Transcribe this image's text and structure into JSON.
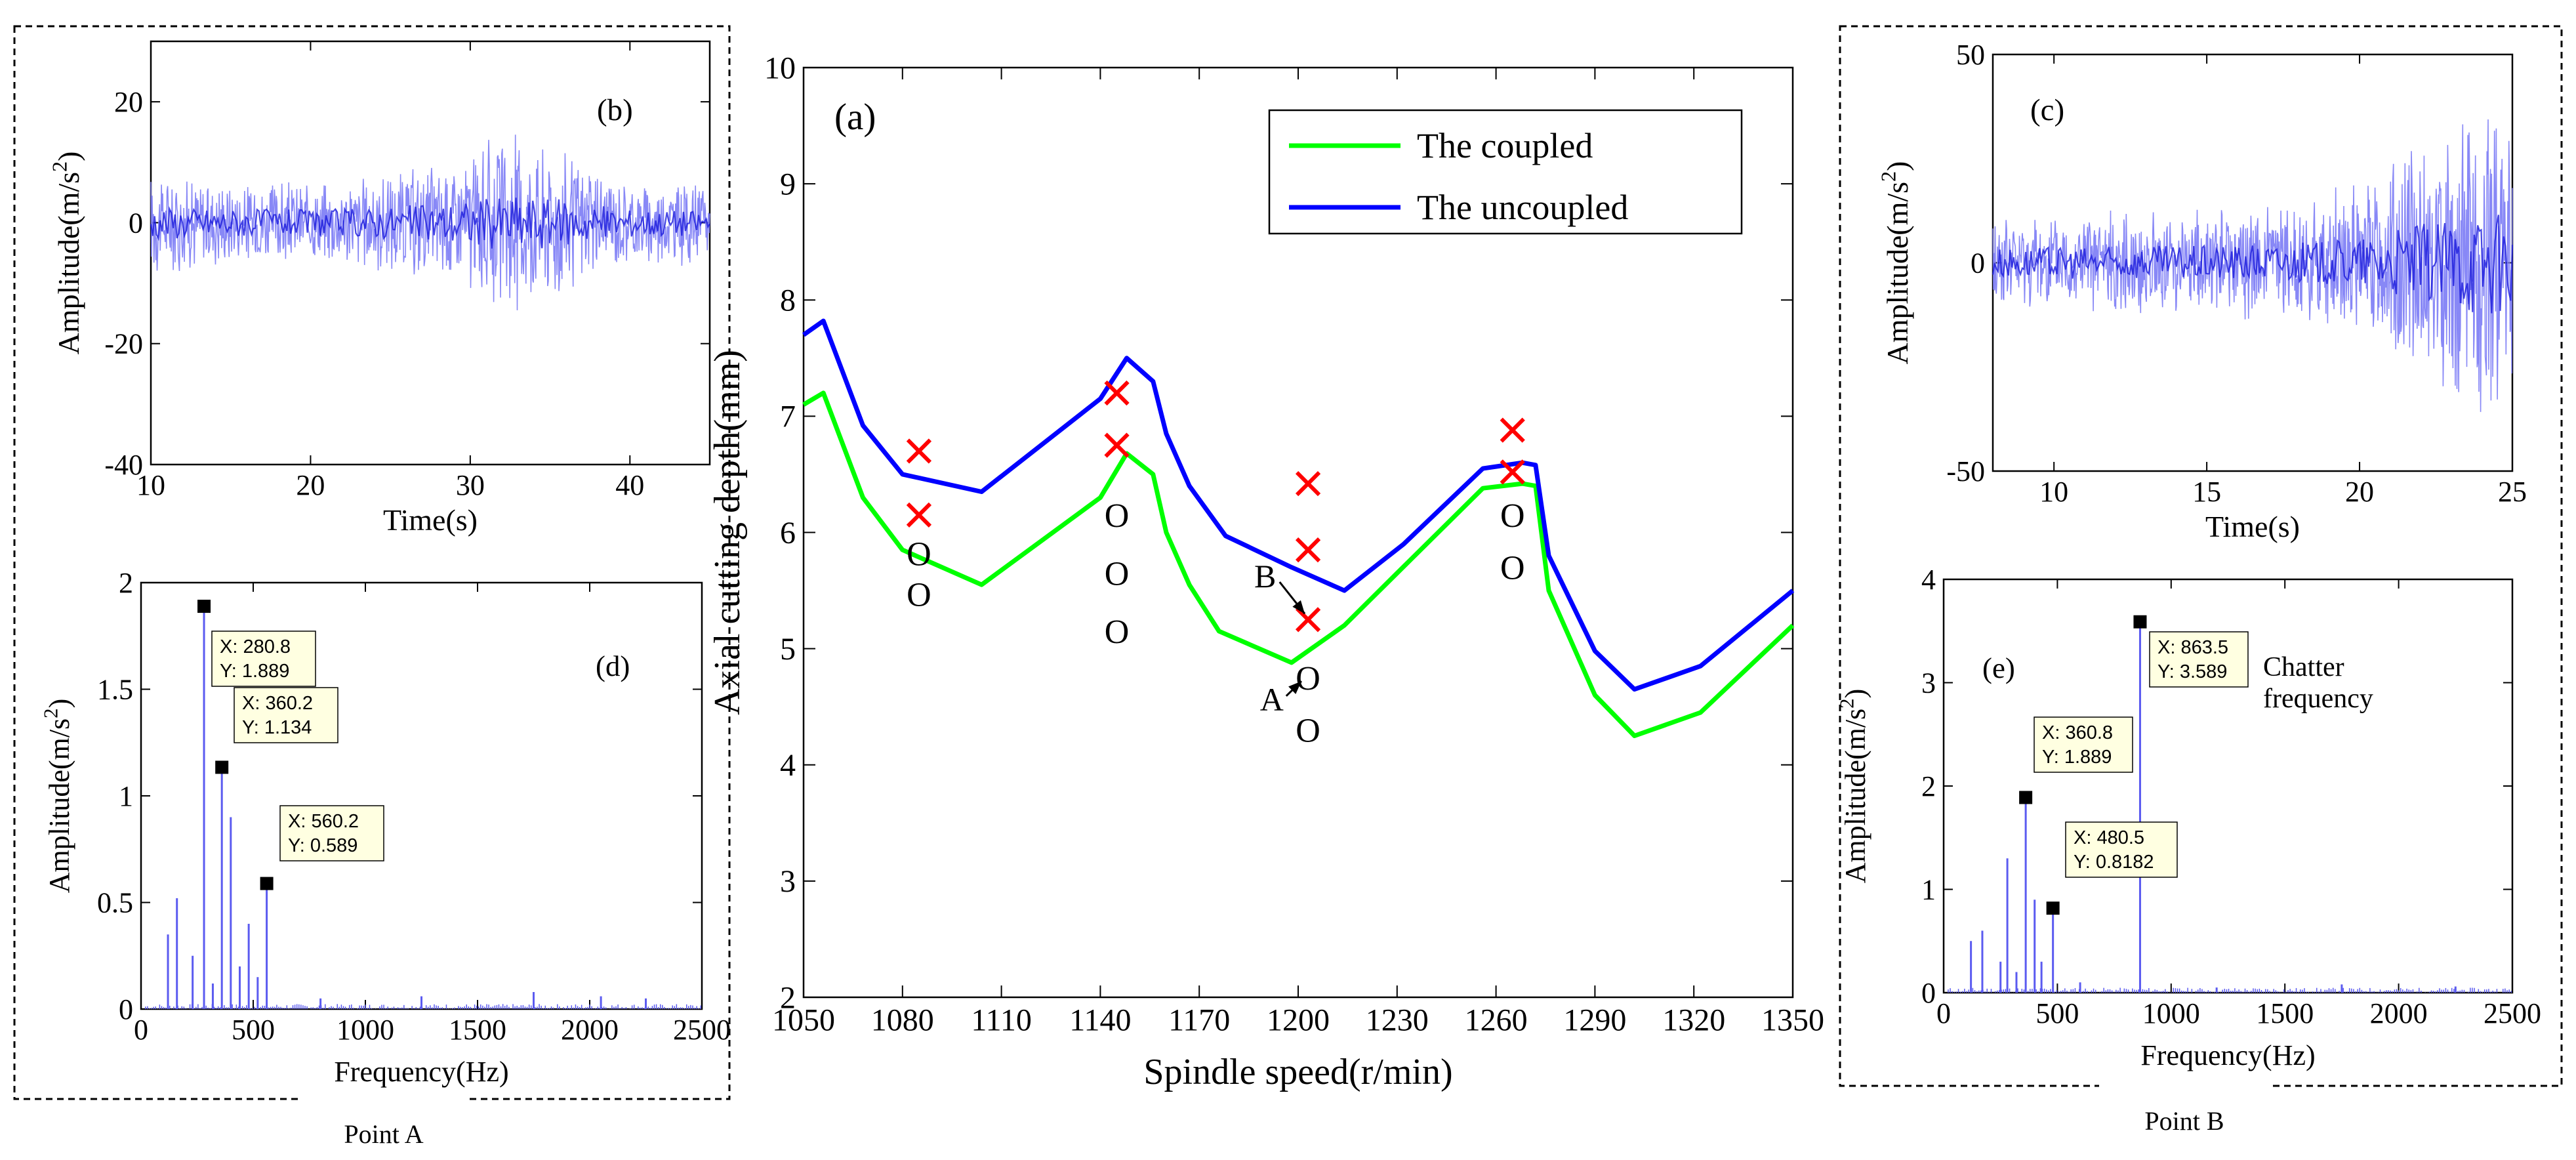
{
  "chart_data": [
    {
      "id": "a",
      "type": "line",
      "panel_label": "(a)",
      "xlabel": "Spindle speed(r/min)",
      "ylabel": "Axial cutting depth(mm)",
      "xlim": [
        1050,
        1350
      ],
      "ylim": [
        2,
        10
      ],
      "xticks": [
        "1050",
        "1080",
        "1110",
        "1140",
        "1170",
        "1200",
        "1230",
        "1260",
        "1290",
        "1320",
        "1350"
      ],
      "yticks": [
        "2",
        "3",
        "4",
        "5",
        "6",
        "7",
        "8",
        "9",
        "10"
      ],
      "legend_position": "top-right",
      "series": [
        {
          "name": "The coupled",
          "color": "#00ff00",
          "points": [
            [
              1050,
              7.1
            ],
            [
              1056,
              7.2
            ],
            [
              1068,
              6.3
            ],
            [
              1080,
              5.85
            ],
            [
              1104,
              5.55
            ],
            [
              1140,
              6.3
            ],
            [
              1148,
              6.68
            ],
            [
              1156,
              6.5
            ],
            [
              1160,
              6.0
            ],
            [
              1167,
              5.55
            ],
            [
              1176,
              5.15
            ],
            [
              1198,
              4.88
            ],
            [
              1214,
              5.2
            ],
            [
              1230,
              5.65
            ],
            [
              1256,
              6.38
            ],
            [
              1268,
              6.42
            ],
            [
              1272,
              6.4
            ],
            [
              1276,
              5.5
            ],
            [
              1290,
              4.6
            ],
            [
              1302,
              4.25
            ],
            [
              1322,
              4.45
            ],
            [
              1350,
              5.2
            ]
          ]
        },
        {
          "name": "The uncoupled",
          "color": "#0000ff",
          "points": [
            [
              1050,
              7.7
            ],
            [
              1056,
              7.82
            ],
            [
              1068,
              6.92
            ],
            [
              1080,
              6.5
            ],
            [
              1104,
              6.35
            ],
            [
              1140,
              7.15
            ],
            [
              1148,
              7.5
            ],
            [
              1156,
              7.3
            ],
            [
              1160,
              6.85
            ],
            [
              1167,
              6.4
            ],
            [
              1178,
              5.97
            ],
            [
              1198,
              5.7
            ],
            [
              1214,
              5.5
            ],
            [
              1232,
              5.9
            ],
            [
              1256,
              6.55
            ],
            [
              1268,
              6.6
            ],
            [
              1272,
              6.58
            ],
            [
              1276,
              5.8
            ],
            [
              1290,
              4.98
            ],
            [
              1302,
              4.65
            ],
            [
              1322,
              4.85
            ],
            [
              1350,
              5.5
            ]
          ]
        }
      ],
      "chatter_markers": [
        [
          1085,
          6.7
        ],
        [
          1085,
          6.15
        ],
        [
          1145,
          7.2
        ],
        [
          1145,
          6.75
        ],
        [
          1203,
          6.42
        ],
        [
          1203,
          5.85
        ],
        [
          1203,
          5.25
        ],
        [
          1265,
          6.88
        ],
        [
          1265,
          6.52
        ]
      ],
      "stable_markers": [
        [
          1085,
          5.82
        ],
        [
          1085,
          5.47
        ],
        [
          1145,
          6.15
        ],
        [
          1145,
          5.65
        ],
        [
          1145,
          5.15
        ],
        [
          1203,
          4.75
        ],
        [
          1203,
          4.3
        ],
        [
          1265,
          6.15
        ],
        [
          1265,
          5.7
        ]
      ],
      "annotations": [
        {
          "text": "A",
          "x": 1192,
          "y": 4.57,
          "arrow_to": [
            1201,
            4.72
          ]
        },
        {
          "text": "B",
          "x": 1190,
          "y": 5.63,
          "arrow_to": [
            1202,
            5.3
          ]
        }
      ],
      "stable_symbol": "O",
      "chatter_symbol": "×"
    },
    {
      "id": "b",
      "type": "line",
      "panel_label": "(b)",
      "xlabel": "Time(s)",
      "ylabel": "Amplitude(m/s",
      "ylabel_sup": "2",
      "ylabel_close": ")",
      "xlim": [
        10,
        45
      ],
      "ylim": [
        -40,
        30
      ],
      "xticks": [
        "10",
        "20",
        "30",
        "40"
      ],
      "yticks": [
        "-40",
        "-20",
        "0",
        "20"
      ],
      "signal": {
        "style": "noise",
        "color": "#7b7bf5",
        "envelope": [
          [
            10,
            9
          ],
          [
            15,
            8
          ],
          [
            20,
            7
          ],
          [
            25,
            9
          ],
          [
            27,
            10
          ],
          [
            30,
            13
          ],
          [
            33,
            16
          ],
          [
            36,
            13
          ],
          [
            39,
            8
          ],
          [
            45,
            7
          ]
        ]
      }
    },
    {
      "id": "c",
      "type": "line",
      "panel_label": "(c)",
      "xlabel": "Time(s)",
      "ylabel": "Amplitude(m/s",
      "ylabel_sup": "2",
      "ylabel_close": ")",
      "xlim": [
        8,
        25
      ],
      "ylim": [
        -50,
        50
      ],
      "xticks": [
        "10",
        "15",
        "20",
        "25"
      ],
      "yticks": [
        "-50",
        "0",
        "50"
      ],
      "signal": {
        "style": "noise",
        "color": "#7b7bf5",
        "envelope": [
          [
            8,
            12
          ],
          [
            12,
            13
          ],
          [
            15,
            14
          ],
          [
            18,
            16
          ],
          [
            20,
            20
          ],
          [
            21,
            27
          ],
          [
            22,
            32
          ],
          [
            23,
            36
          ],
          [
            24,
            42
          ],
          [
            25,
            38
          ]
        ]
      }
    },
    {
      "id": "d",
      "type": "bar",
      "panel_label": "(d)",
      "xlabel": "Frequency(Hz)",
      "ylabel": "Amplitude(m/s",
      "ylabel_sup": "2",
      "ylabel_close": ")",
      "xlim": [
        0,
        2500
      ],
      "ylim": [
        0,
        2
      ],
      "xticks": [
        "0",
        "500",
        "1000",
        "1500",
        "2000",
        "2500"
      ],
      "yticks": [
        "0",
        "0.5",
        "1",
        "1.5",
        "2"
      ],
      "peaks": [
        [
          120,
          0.35
        ],
        [
          160,
          0.52
        ],
        [
          230,
          0.25
        ],
        [
          280.8,
          1.889
        ],
        [
          320,
          0.12
        ],
        [
          360.2,
          1.134
        ],
        [
          400,
          0.9
        ],
        [
          440,
          0.2
        ],
        [
          480,
          0.4
        ],
        [
          520,
          0.15
        ],
        [
          560.2,
          0.589
        ],
        [
          800,
          0.05
        ],
        [
          1250,
          0.06
        ],
        [
          1750,
          0.08
        ],
        [
          2050,
          0.06
        ],
        [
          2250,
          0.05
        ]
      ],
      "datatips": [
        {
          "x_text": "X: 280.8",
          "y_text": "Y: 1.889",
          "x": 280.8,
          "y": 1.889
        },
        {
          "x_text": "X: 360.2",
          "y_text": "Y: 1.134",
          "x": 360.2,
          "y": 1.134
        },
        {
          "x_text": "X: 560.2",
          "y_text": "Y: 0.589",
          "x": 560.2,
          "y": 0.589
        }
      ],
      "color": "#5b5bf0"
    },
    {
      "id": "e",
      "type": "bar",
      "panel_label": "(e)",
      "xlabel": "Frequency(Hz)",
      "ylabel": "Amplitude(m/s",
      "ylabel_sup": "2",
      "ylabel_close": ")",
      "xlim": [
        0,
        2500
      ],
      "ylim": [
        0,
        4
      ],
      "xticks": [
        "0",
        "500",
        "1000",
        "1500",
        "2000",
        "2500"
      ],
      "yticks": [
        "0",
        "1",
        "2",
        "3",
        "4"
      ],
      "peaks": [
        [
          120,
          0.5
        ],
        [
          170,
          0.6
        ],
        [
          250,
          0.3
        ],
        [
          280,
          1.3
        ],
        [
          320,
          0.2
        ],
        [
          360.8,
          1.889
        ],
        [
          400,
          0.9
        ],
        [
          430,
          0.3
        ],
        [
          480.5,
          0.8182
        ],
        [
          600,
          0.1
        ],
        [
          863.5,
          3.589
        ],
        [
          1200,
          0.05
        ],
        [
          1750,
          0.08
        ],
        [
          2250,
          0.06
        ]
      ],
      "datatips": [
        {
          "x_text": "X: 863.5",
          "y_text": "Y: 3.589",
          "x": 863.5,
          "y": 3.589
        },
        {
          "x_text": "X: 360.8",
          "y_text": "Y: 1.889",
          "x": 360.8,
          "y": 1.889
        },
        {
          "x_text": "X: 480.5",
          "y_text": "Y: 0.8182",
          "x": 480.5,
          "y": 0.8182
        }
      ],
      "note": [
        "Chatter",
        "frequency"
      ],
      "color": "#5b5bf0"
    }
  ],
  "captions": {
    "left": "Point A",
    "right": "Point B"
  },
  "colors": {
    "chatter": "#ff0000",
    "tip_fill": "#ffffe1"
  }
}
